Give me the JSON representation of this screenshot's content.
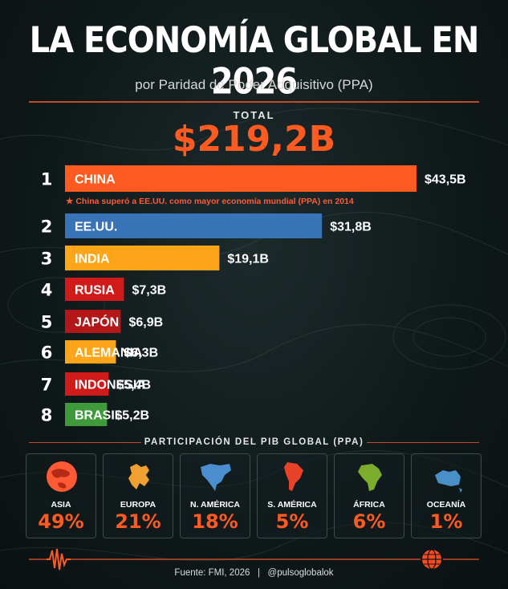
{
  "header": {
    "title": "LA ECONOMÍA GLOBAL EN 2026",
    "subtitle": "por Paridad de Poder Adquisitivo (PPA)",
    "total_label": "TOTAL",
    "total_value": "$219,2B"
  },
  "note": "★ China superó a EE.UU. como mayor economía mundial (PPA) en 2014",
  "chart_data": {
    "type": "bar",
    "orientation": "horizontal",
    "categories": [
      "CHINA",
      "EE.UU.",
      "INDIA",
      "RUSIA",
      "JAPÓN",
      "ALEMANIA",
      "INDONESIA",
      "BRASIL"
    ],
    "values": [
      43.5,
      31.8,
      19.1,
      7.3,
      6.9,
      6.3,
      5.4,
      5.2
    ],
    "value_labels": [
      "$43,5B",
      "$31,8B",
      "$19,1B",
      "$7,3B",
      "$6,9B",
      "$6,3B",
      "$5,4B",
      "$5,2B"
    ],
    "ranks": [
      "1",
      "2",
      "3",
      "4",
      "5",
      "6",
      "7",
      "8"
    ],
    "colors": [
      "#ff5a1f",
      "#3a74b8",
      "#ffa51a",
      "#d11b1b",
      "#b3171a",
      "#ffa51a",
      "#d11b1b",
      "#3e9a3a"
    ],
    "xlim": [
      0,
      43.5
    ]
  },
  "share_section": {
    "label": "PARTICIPACIÓN DEL PIB GLOBAL (PPA)",
    "regions": [
      {
        "name": "ASIA",
        "pct": "49%",
        "icon": "asia-globe-icon",
        "color": "#ff5a36"
      },
      {
        "name": "EUROPA",
        "pct": "21%",
        "icon": "europe-map-icon",
        "color": "#f0a030"
      },
      {
        "name": "N. AMÉRICA",
        "pct": "18%",
        "icon": "north-america-map-icon",
        "color": "#4a8ed0"
      },
      {
        "name": "S. AMÉRICA",
        "pct": "5%",
        "icon": "south-america-map-icon",
        "color": "#e8432a"
      },
      {
        "name": "ÁFRICA",
        "pct": "6%",
        "icon": "africa-map-icon",
        "color": "#7cae2c"
      },
      {
        "name": "OCEANÍA",
        "pct": "1%",
        "icon": "oceania-map-icon",
        "color": "#4a90c8"
      }
    ]
  },
  "footer": {
    "text": "Fuente: FMI, 2026   |   @pulsoglobalok"
  }
}
